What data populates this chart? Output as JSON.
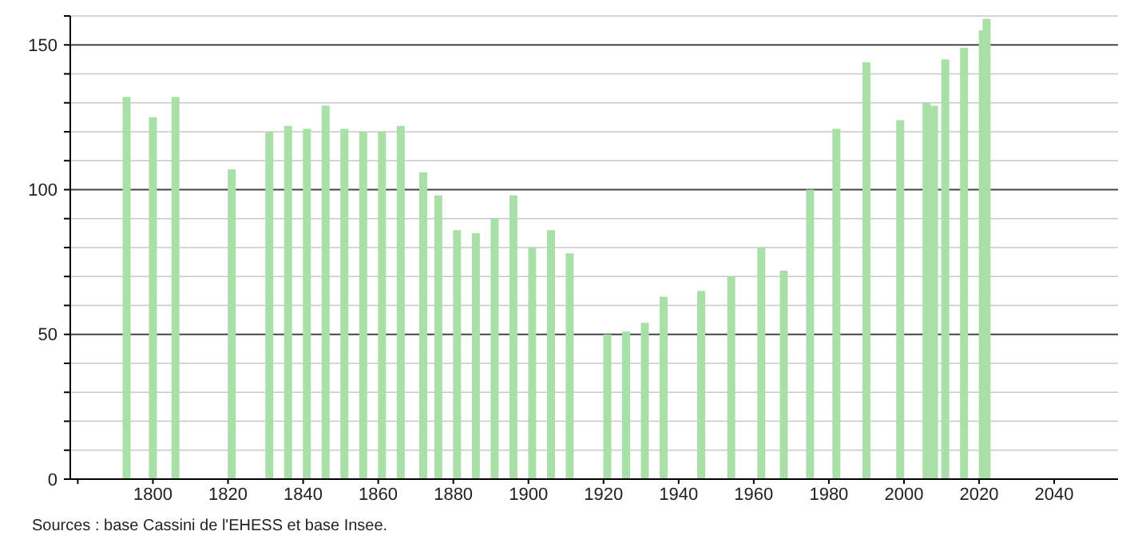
{
  "chart_data": {
    "type": "bar",
    "x": [
      1793,
      1800,
      1806,
      1821,
      1831,
      1836,
      1841,
      1846,
      1851,
      1856,
      1861,
      1866,
      1872,
      1876,
      1881,
      1886,
      1891,
      1896,
      1901,
      1906,
      1911,
      1921,
      1926,
      1931,
      1936,
      1946,
      1954,
      1962,
      1968,
      1975,
      1982,
      1990,
      1999,
      2006,
      2008,
      2011,
      2016,
      2021,
      2022
    ],
    "values": [
      132,
      125,
      132,
      107,
      120,
      122,
      121,
      129,
      121,
      120,
      120,
      122,
      106,
      98,
      86,
      85,
      90,
      98,
      80,
      86,
      78,
      50,
      51,
      54,
      63,
      65,
      70,
      80,
      72,
      100,
      121,
      144,
      124,
      130,
      129,
      145,
      149,
      155,
      159
    ],
    "color": "#a8e0a8",
    "xlim": [
      1778,
      2057
    ],
    "xticks": [
      {
        "value": 1780,
        "label": null
      },
      1800,
      1820,
      1840,
      1860,
      1880,
      1900,
      1920,
      1940,
      1960,
      1980,
      2000,
      2020,
      2040
    ],
    "ylim": [
      0,
      160
    ],
    "yticks": [
      0,
      {
        "value": 10,
        "label": null
      },
      {
        "value": 20,
        "label": null
      },
      {
        "value": 30,
        "label": null
      },
      {
        "value": 40,
        "label": null
      },
      50,
      {
        "value": 60,
        "label": null
      },
      {
        "value": 70,
        "label": null
      },
      {
        "value": 80,
        "label": null
      },
      {
        "value": 90,
        "label": null
      },
      100,
      {
        "value": 110,
        "label": null
      },
      {
        "value": 120,
        "label": null
      },
      {
        "value": 130,
        "label": null
      },
      {
        "value": 140,
        "label": null
      },
      150,
      {
        "value": 160,
        "label": null
      }
    ],
    "grid": "y",
    "annotations": [
      "Sources : base Cassini de l'EHESS et base Insee."
    ]
  }
}
